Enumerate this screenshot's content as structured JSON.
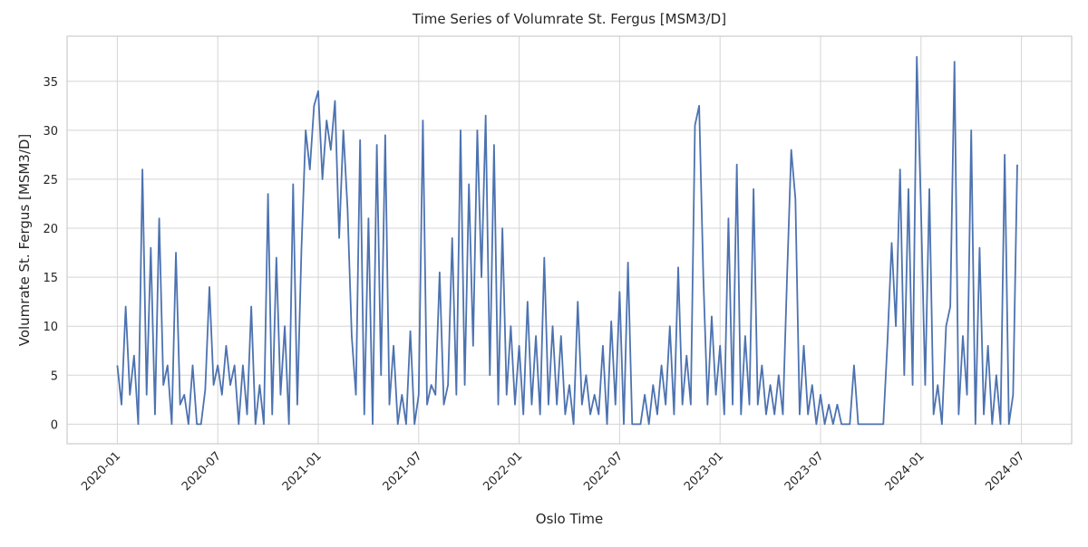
{
  "chart_data": {
    "type": "line",
    "title": "Time Series of Volumrate St. Fergus [MSM3/D]",
    "xlabel": "Oslo Time",
    "ylabel": "Volumrate St. Fergus [MSM3/D]",
    "grid": true,
    "xlim": [
      "2019-10",
      "2024-10"
    ],
    "xticks": [
      "2020-01",
      "2020-07",
      "2021-01",
      "2021-07",
      "2022-01",
      "2022-07",
      "2023-01",
      "2023-07",
      "2024-01",
      "2024-07"
    ],
    "ylim": [
      -2,
      39.6
    ],
    "yticks": [
      0,
      5,
      10,
      15,
      20,
      25,
      30,
      35
    ],
    "x": [
      "2020-01",
      "2020-01",
      "2020-01",
      "2020-01",
      "2020-02",
      "2020-02",
      "2020-02",
      "2020-02",
      "2020-03",
      "2020-03",
      "2020-03",
      "2020-03",
      "2020-04",
      "2020-04",
      "2020-04",
      "2020-04",
      "2020-05",
      "2020-05",
      "2020-05",
      "2020-05",
      "2020-06",
      "2020-06",
      "2020-06",
      "2020-06",
      "2020-07",
      "2020-07",
      "2020-07",
      "2020-07",
      "2020-08",
      "2020-08",
      "2020-08",
      "2020-08",
      "2020-09",
      "2020-09",
      "2020-09",
      "2020-09",
      "2020-10",
      "2020-10",
      "2020-10",
      "2020-10",
      "2020-11",
      "2020-11",
      "2020-11",
      "2020-11",
      "2020-12",
      "2020-12",
      "2020-12",
      "2020-12",
      "2021-01",
      "2021-01",
      "2021-01",
      "2021-01",
      "2021-02",
      "2021-02",
      "2021-02",
      "2021-02",
      "2021-03",
      "2021-03",
      "2021-03",
      "2021-03",
      "2021-04",
      "2021-04",
      "2021-04",
      "2021-04",
      "2021-05",
      "2021-05",
      "2021-05",
      "2021-05",
      "2021-06",
      "2021-06",
      "2021-06",
      "2021-06",
      "2021-07",
      "2021-07",
      "2021-07",
      "2021-07",
      "2021-08",
      "2021-08",
      "2021-08",
      "2021-08",
      "2021-09",
      "2021-09",
      "2021-09",
      "2021-09",
      "2021-10",
      "2021-10",
      "2021-10",
      "2021-10",
      "2021-11",
      "2021-11",
      "2021-11",
      "2021-11",
      "2021-12",
      "2021-12",
      "2021-12",
      "2021-12",
      "2022-01",
      "2022-01",
      "2022-01",
      "2022-01",
      "2022-02",
      "2022-02",
      "2022-02",
      "2022-02",
      "2022-03",
      "2022-03",
      "2022-03",
      "2022-03",
      "2022-04",
      "2022-04",
      "2022-04",
      "2022-04",
      "2022-05",
      "2022-05",
      "2022-05",
      "2022-05",
      "2022-06",
      "2022-06",
      "2022-06",
      "2022-06",
      "2022-07",
      "2022-07",
      "2022-07",
      "2022-07",
      "2022-08",
      "2022-08",
      "2022-08",
      "2022-08",
      "2022-09",
      "2022-09",
      "2022-09",
      "2022-09",
      "2022-10",
      "2022-10",
      "2022-10",
      "2022-10",
      "2022-11",
      "2022-11",
      "2022-11",
      "2022-11",
      "2022-12",
      "2022-12",
      "2022-12",
      "2022-12",
      "2023-01",
      "2023-01",
      "2023-01",
      "2023-01",
      "2023-02",
      "2023-02",
      "2023-02",
      "2023-02",
      "2023-03",
      "2023-03",
      "2023-03",
      "2023-03",
      "2023-04",
      "2023-04",
      "2023-04",
      "2023-04",
      "2023-05",
      "2023-05",
      "2023-05",
      "2023-05",
      "2023-06",
      "2023-06",
      "2023-06",
      "2023-06",
      "2023-07",
      "2023-07",
      "2023-07",
      "2023-07",
      "2023-08",
      "2023-08",
      "2023-08",
      "2023-08",
      "2023-09",
      "2023-09",
      "2023-09",
      "2023-09",
      "2023-10",
      "2023-10",
      "2023-10",
      "2023-10",
      "2023-11",
      "2023-11",
      "2023-11",
      "2023-11",
      "2023-12",
      "2023-12",
      "2023-12",
      "2023-12",
      "2024-01",
      "2024-01",
      "2024-01",
      "2024-01",
      "2024-02",
      "2024-02",
      "2024-02",
      "2024-02",
      "2024-03",
      "2024-03",
      "2024-03",
      "2024-03",
      "2024-04",
      "2024-04",
      "2024-04",
      "2024-04",
      "2024-05",
      "2024-05",
      "2024-05",
      "2024-05",
      "2024-06",
      "2024-06",
      "2024-06",
      "2024-06"
    ],
    "series": [
      {
        "name": "Volumrate St. Fergus [MSM3/D]",
        "color": "#4c72b0",
        "values": [
          6,
          2,
          12,
          3,
          7,
          0,
          26,
          3,
          18,
          1,
          21,
          4,
          6,
          0,
          17.5,
          2,
          3,
          0,
          6,
          0,
          0,
          3.5,
          14,
          4,
          6,
          3,
          8,
          4,
          6,
          0,
          6,
          1,
          12,
          0,
          4,
          0,
          23.5,
          1,
          17,
          3,
          10,
          0,
          24.5,
          2,
          18,
          30,
          26,
          32.5,
          34,
          25,
          31,
          28,
          33,
          19,
          30,
          22,
          9,
          3,
          29,
          1,
          21,
          0,
          28.5,
          5,
          29.5,
          2,
          8,
          0,
          3,
          0,
          9.5,
          0,
          3,
          31,
          2,
          4,
          3,
          15.5,
          2,
          4,
          19,
          3,
          30,
          4,
          24.5,
          8,
          30,
          15,
          31.5,
          5,
          28.5,
          2,
          20,
          3,
          10,
          2,
          8,
          1,
          12.5,
          2,
          9,
          1,
          17,
          2,
          10,
          2,
          9,
          1,
          4,
          0,
          12.5,
          2,
          5,
          1,
          3,
          1,
          8,
          0,
          10.5,
          2,
          13.5,
          0,
          16.5,
          0,
          0,
          0,
          3,
          0,
          4,
          1,
          6,
          2,
          10,
          1,
          16,
          2,
          7,
          2,
          30.5,
          32.5,
          15,
          2,
          11,
          3,
          8,
          1,
          21,
          2,
          26.5,
          1,
          9,
          2,
          24,
          2,
          6,
          1,
          4,
          1,
          5,
          1,
          15,
          28,
          23,
          1,
          8,
          1,
          4,
          0,
          3,
          0,
          2,
          0,
          2,
          0,
          0,
          0,
          6,
          0,
          0,
          0,
          0,
          0,
          0,
          0,
          8.5,
          18.5,
          10,
          26,
          5,
          24,
          4,
          37.5,
          22,
          4,
          24,
          1,
          4,
          0,
          10,
          12,
          37,
          1,
          9,
          3,
          30,
          0,
          18,
          1,
          8,
          0,
          5,
          0,
          27.5,
          0,
          3,
          26.5
        ]
      }
    ]
  }
}
